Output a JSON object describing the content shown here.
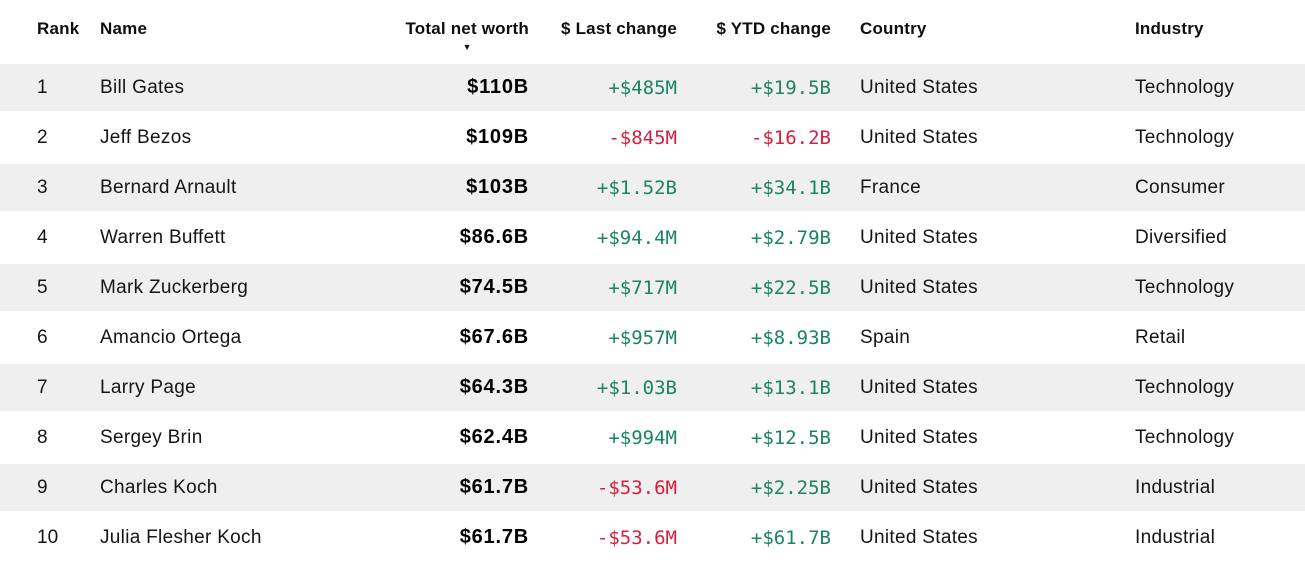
{
  "colors": {
    "positive_change": "#1a8464",
    "negative_change": "#d81e40",
    "row_alternate_background": "#efefef",
    "text": "#111111"
  },
  "table": {
    "sort": {
      "column": "Total net worth",
      "direction": "desc",
      "icon": "▼"
    },
    "columns": [
      {
        "key": "rank",
        "label": "Rank"
      },
      {
        "key": "name",
        "label": "Name"
      },
      {
        "key": "net_worth",
        "label": "Total net worth"
      },
      {
        "key": "last_change",
        "label": "$ Last change"
      },
      {
        "key": "ytd_change",
        "label": "$ YTD change"
      },
      {
        "key": "country",
        "label": "Country"
      },
      {
        "key": "industry",
        "label": "Industry"
      }
    ],
    "rows": [
      {
        "rank": "1",
        "name": "Bill Gates",
        "net_worth": "$110B",
        "last_change": "+$485M",
        "last_dir": "up",
        "ytd_change": "+$19.5B",
        "ytd_dir": "up",
        "country": "United States",
        "industry": "Technology"
      },
      {
        "rank": "2",
        "name": "Jeff Bezos",
        "net_worth": "$109B",
        "last_change": "-$845M",
        "last_dir": "down",
        "ytd_change": "-$16.2B",
        "ytd_dir": "down",
        "country": "United States",
        "industry": "Technology"
      },
      {
        "rank": "3",
        "name": "Bernard Arnault",
        "net_worth": "$103B",
        "last_change": "+$1.52B",
        "last_dir": "up",
        "ytd_change": "+$34.1B",
        "ytd_dir": "up",
        "country": "France",
        "industry": "Consumer"
      },
      {
        "rank": "4",
        "name": "Warren Buffett",
        "net_worth": "$86.6B",
        "last_change": "+$94.4M",
        "last_dir": "up",
        "ytd_change": "+$2.79B",
        "ytd_dir": "up",
        "country": "United States",
        "industry": "Diversified"
      },
      {
        "rank": "5",
        "name": "Mark Zuckerberg",
        "net_worth": "$74.5B",
        "last_change": "+$717M",
        "last_dir": "up",
        "ytd_change": "+$22.5B",
        "ytd_dir": "up",
        "country": "United States",
        "industry": "Technology"
      },
      {
        "rank": "6",
        "name": "Amancio Ortega",
        "net_worth": "$67.6B",
        "last_change": "+$957M",
        "last_dir": "up",
        "ytd_change": "+$8.93B",
        "ytd_dir": "up",
        "country": "Spain",
        "industry": "Retail"
      },
      {
        "rank": "7",
        "name": "Larry Page",
        "net_worth": "$64.3B",
        "last_change": "+$1.03B",
        "last_dir": "up",
        "ytd_change": "+$13.1B",
        "ytd_dir": "up",
        "country": "United States",
        "industry": "Technology"
      },
      {
        "rank": "8",
        "name": "Sergey Brin",
        "net_worth": "$62.4B",
        "last_change": "+$994M",
        "last_dir": "up",
        "ytd_change": "+$12.5B",
        "ytd_dir": "up",
        "country": "United States",
        "industry": "Technology"
      },
      {
        "rank": "9",
        "name": "Charles Koch",
        "net_worth": "$61.7B",
        "last_change": "-$53.6M",
        "last_dir": "down",
        "ytd_change": "+$2.25B",
        "ytd_dir": "up",
        "country": "United States",
        "industry": "Industrial"
      },
      {
        "rank": "10",
        "name": "Julia Flesher Koch",
        "net_worth": "$61.7B",
        "last_change": "-$53.6M",
        "last_dir": "down",
        "ytd_change": "+$61.7B",
        "ytd_dir": "up",
        "country": "United States",
        "industry": "Industrial"
      }
    ]
  }
}
